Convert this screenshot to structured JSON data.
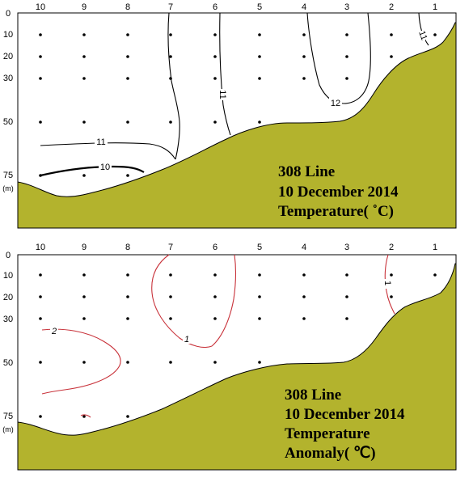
{
  "stations": [
    "10",
    "9",
    "8",
    "7",
    "6",
    "5",
    "4",
    "3",
    "2",
    "1"
  ],
  "depth_ticks": [
    "0",
    "10",
    "20",
    "30",
    "50",
    "75"
  ],
  "depth_unit": "(m)",
  "colors": {
    "land": "#b3b32d",
    "anomaly_contour": "#c8323a",
    "temperature_contour": "#000000"
  },
  "panel_top": {
    "title_lines": [
      "308 Line",
      "10 December 2014",
      "Temperature( ˚C)"
    ],
    "contour_labels": [
      "11",
      "11",
      "12",
      "11",
      "10"
    ]
  },
  "panel_bottom": {
    "title_lines": [
      "308 Line",
      "10 December 2014",
      "Temperature",
      "Anomaly( ℃)"
    ],
    "contour_labels": [
      "2",
      "1",
      "1"
    ]
  }
}
